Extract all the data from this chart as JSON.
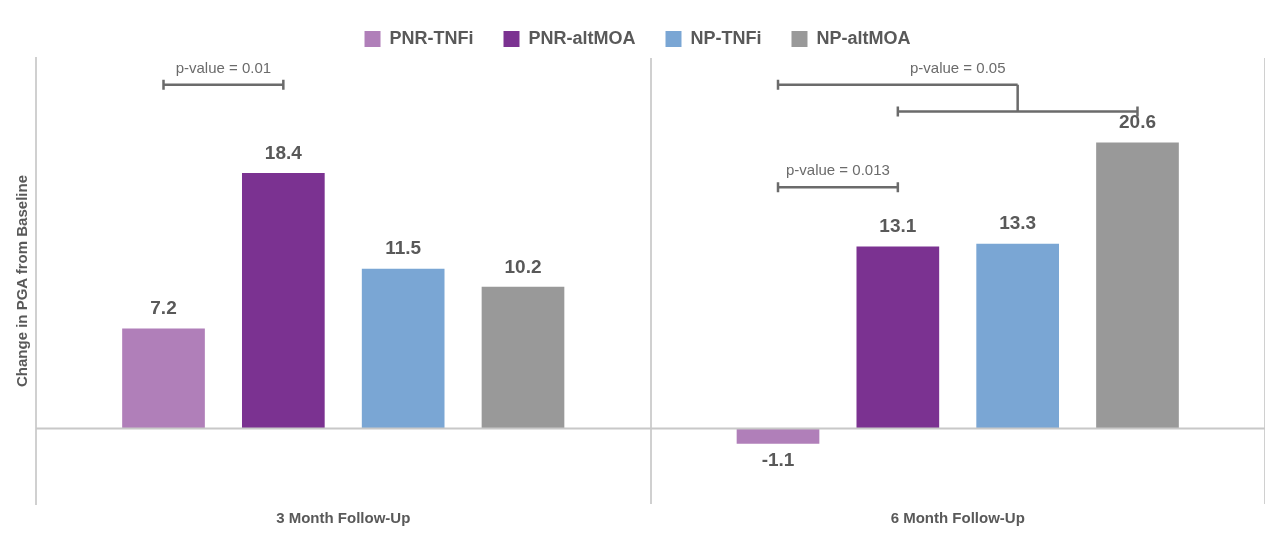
{
  "chart_data": {
    "type": "bar",
    "ylabel": "Change in PGA from Baseline",
    "categories": [
      "3 Month Follow-Up",
      "6 Month Follow-Up"
    ],
    "series": [
      {
        "name": "PNR-TNFi",
        "color": "#b07fb9",
        "values": [
          7.2,
          -1.1
        ]
      },
      {
        "name": "PNR-altMOA",
        "color": "#7b3291",
        "values": [
          18.4,
          13.1
        ]
      },
      {
        "name": "NP-TNFi",
        "color": "#7aa6d4",
        "values": [
          11.5,
          13.3
        ]
      },
      {
        "name": "NP-altMOA",
        "color": "#999999",
        "values": [
          10.2,
          20.6
        ]
      }
    ],
    "data_labels": true,
    "legend": "top",
    "grid": "x",
    "annotations": [
      "p-value = 0.01",
      "p-value = 0.05",
      "p-value = 0.013"
    ]
  }
}
